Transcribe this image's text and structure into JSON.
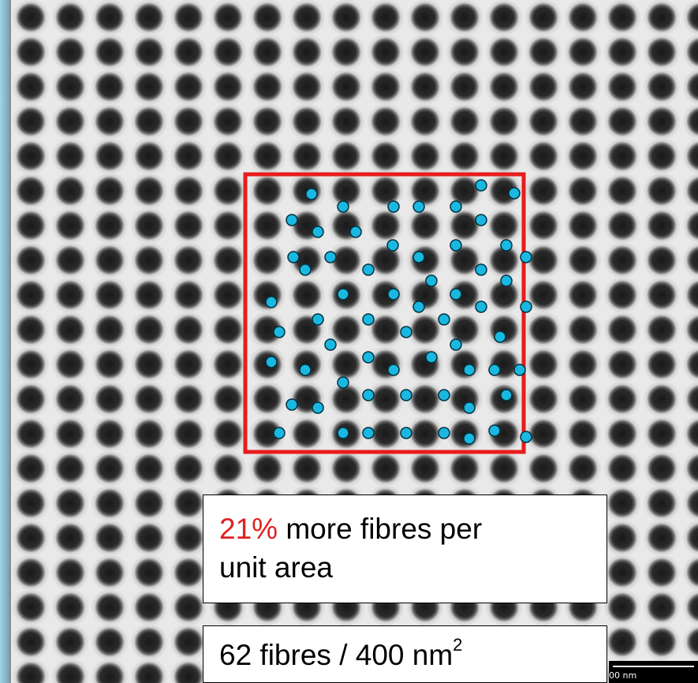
{
  "figure": {
    "callout": {
      "percent": "21%",
      "text_line1": "more fibres per",
      "text_line2": "unit area"
    },
    "count": {
      "value_text": "62 fibres / 400 nm",
      "superscript": "2"
    },
    "scale_bar": {
      "label": "00 nm"
    },
    "colors": {
      "roi_box": "#e81c1c",
      "marker_fill": "#1ab8e0",
      "marker_stroke": "#003040",
      "callout_accent": "#e02020"
    }
  }
}
